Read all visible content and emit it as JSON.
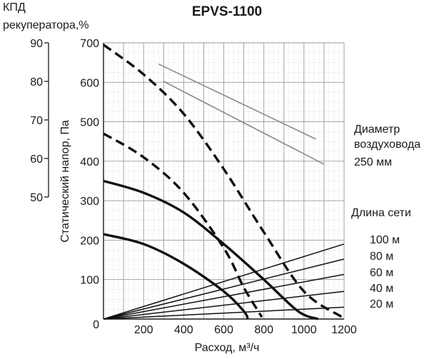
{
  "chart_data": {
    "type": "line",
    "title": "EPVS-1100",
    "xlabel": "Расход, м³/ч",
    "ylabel": "Статический напор, Па",
    "y2label": [
      "КПД",
      "рекуператора,%"
    ],
    "xlim": [
      0,
      1200
    ],
    "ylim": [
      0,
      700
    ],
    "y2lim": [
      50,
      90
    ],
    "xticks": [
      "0",
      "200",
      "400",
      "600",
      "800",
      "1000",
      "1200"
    ],
    "yticks": [
      "100",
      "200",
      "300",
      "400",
      "500",
      "600",
      "700"
    ],
    "y2ticks": [
      "50",
      "60",
      "70",
      "80",
      "90"
    ],
    "grid": true,
    "annotations": {
      "duct": [
        "Диаметр",
        "воздуховода",
        "250 мм"
      ],
      "network_title": "Длина сети",
      "network_lengths": [
        "100 м",
        "80 м",
        "60 м",
        "40 м",
        "20 м"
      ]
    },
    "series": [
      {
        "style": "dashed",
        "points": [
          [
            0,
            695
          ],
          [
            200,
            620
          ],
          [
            400,
            520
          ],
          [
            600,
            380
          ],
          [
            800,
            220
          ],
          [
            1000,
            70
          ],
          [
            1190,
            5
          ]
        ]
      },
      {
        "style": "dashed",
        "points": [
          [
            0,
            470
          ],
          [
            200,
            410
          ],
          [
            400,
            320
          ],
          [
            600,
            180
          ],
          [
            700,
            80
          ],
          [
            790,
            5
          ]
        ]
      },
      {
        "style": "solid-thick",
        "points": [
          [
            0,
            350
          ],
          [
            200,
            320
          ],
          [
            400,
            270
          ],
          [
            600,
            190
          ],
          [
            800,
            100
          ],
          [
            970,
            20
          ],
          [
            1070,
            0
          ]
        ]
      },
      {
        "style": "solid-thick",
        "points": [
          [
            0,
            215
          ],
          [
            200,
            190
          ],
          [
            400,
            140
          ],
          [
            600,
            70
          ],
          [
            700,
            20
          ],
          [
            720,
            0
          ]
        ]
      },
      {
        "style": "thin-gray",
        "axis": "y2",
        "points": [
          [
            275,
            84.5
          ],
          [
            1060,
            65
          ]
        ]
      },
      {
        "style": "thin-gray",
        "axis": "y2",
        "points": [
          [
            300,
            80
          ],
          [
            1100,
            58.5
          ]
        ]
      },
      {
        "style": "thin",
        "points": [
          [
            0,
            0
          ],
          [
            1200,
            190
          ]
        ]
      },
      {
        "style": "thin",
        "points": [
          [
            0,
            0
          ],
          [
            1200,
            152
          ]
        ]
      },
      {
        "style": "thin",
        "points": [
          [
            0,
            0
          ],
          [
            1200,
            113
          ]
        ]
      },
      {
        "style": "thin",
        "points": [
          [
            0,
            0
          ],
          [
            1200,
            70
          ]
        ]
      },
      {
        "style": "thin",
        "points": [
          [
            0,
            0
          ],
          [
            1200,
            30
          ]
        ]
      }
    ]
  }
}
